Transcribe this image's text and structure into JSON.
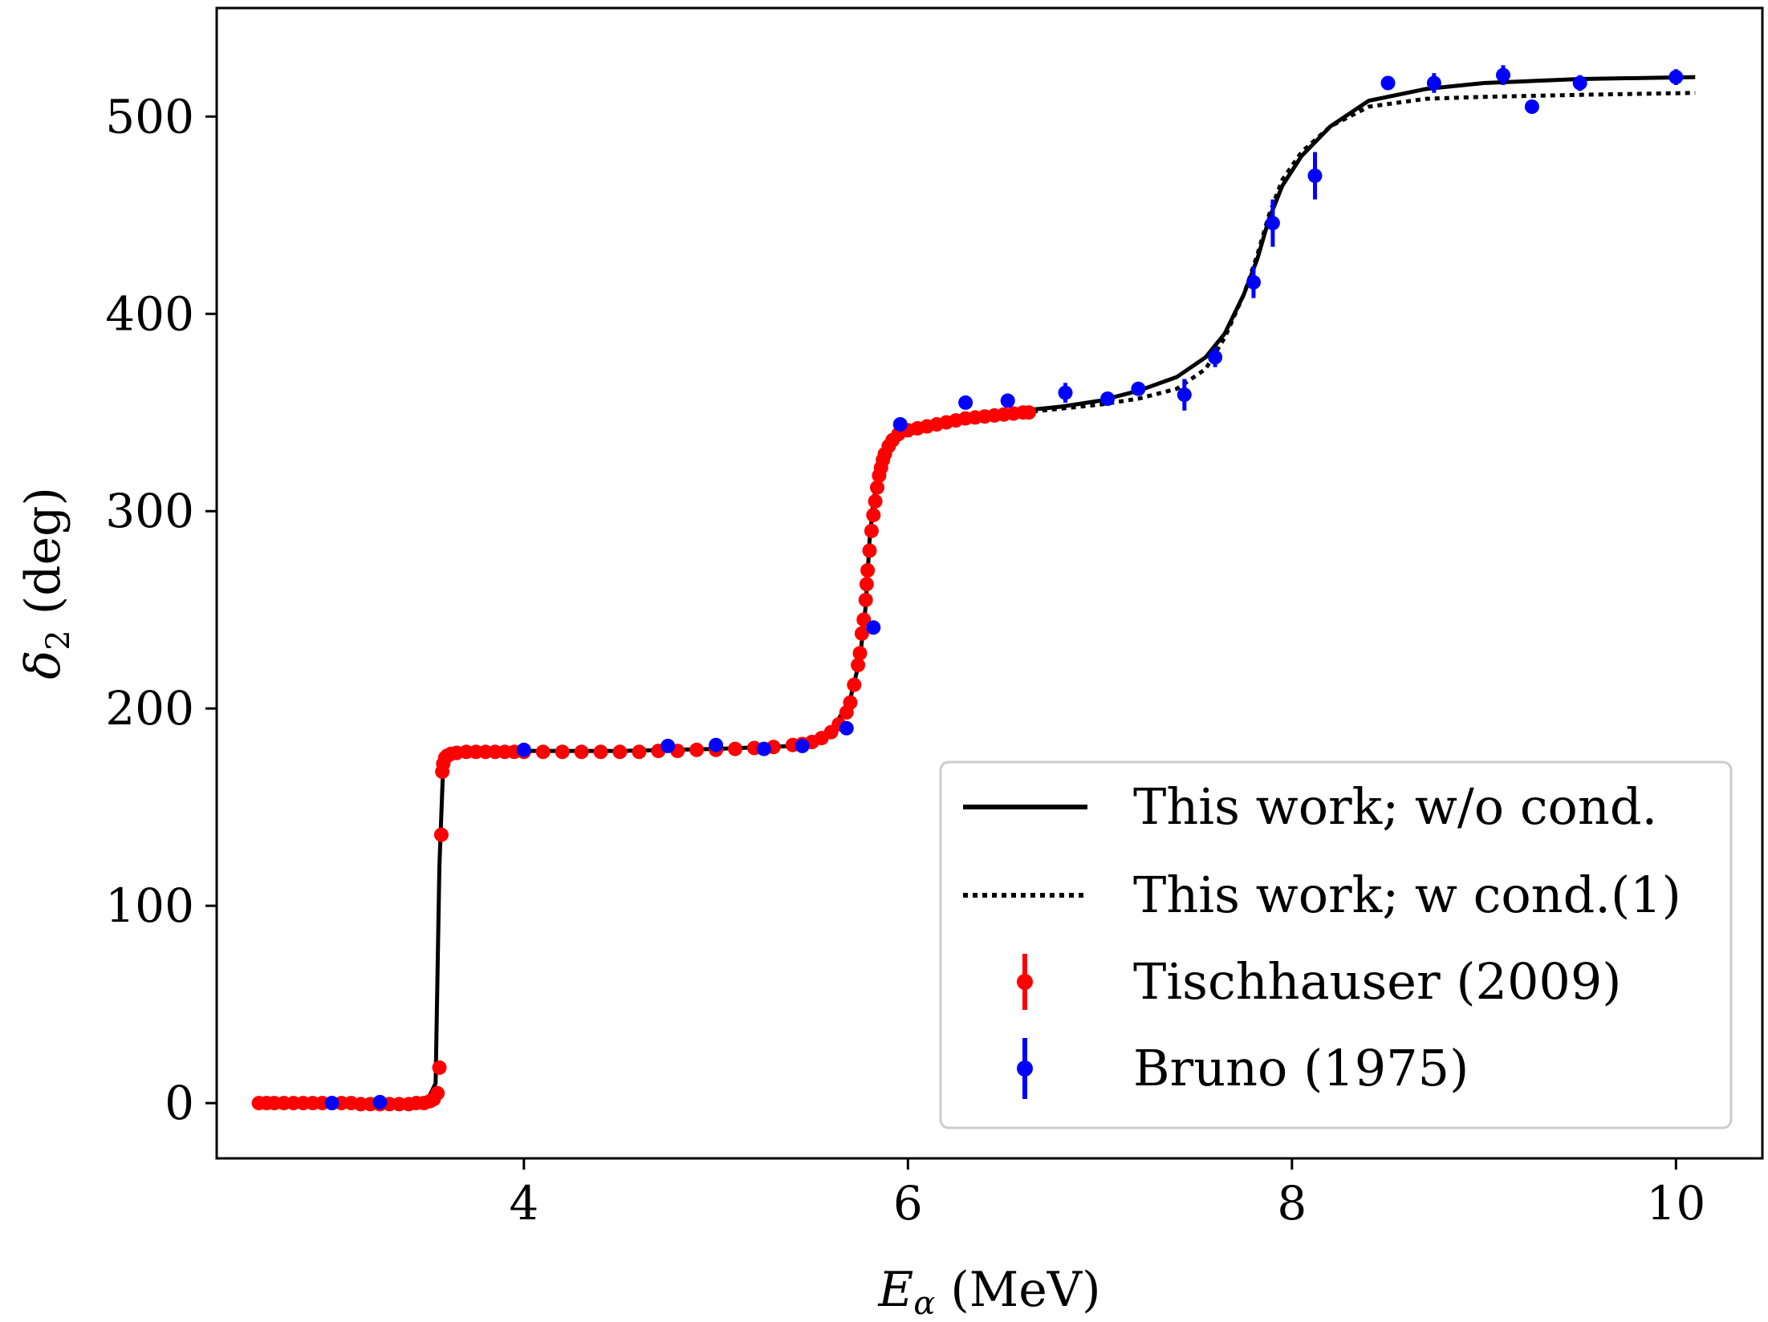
{
  "chart_data": {
    "type": "scatter",
    "xlabel": "E_α (MeV)",
    "ylabel": "δ_2 (deg)",
    "xlabel_parts": {
      "symbol": "E",
      "subscript": "α",
      "unit": " (MeV)"
    },
    "ylabel_parts": {
      "symbol": "δ",
      "subscript": "2",
      "unit": " (deg)"
    },
    "xlim": [
      2.4,
      10.45
    ],
    "ylim": [
      -28,
      555
    ],
    "xticks": [
      4,
      6,
      8,
      10
    ],
    "yticks": [
      0,
      100,
      200,
      300,
      400,
      500
    ],
    "grid": false,
    "legend_position": "lower-right",
    "series": [
      {
        "name": "This work; w/o cond.",
        "kind": "line",
        "style": "solid",
        "color": "#000000",
        "x": [
          2.6,
          3.0,
          3.4,
          3.5,
          3.54,
          3.56,
          3.58,
          3.62,
          3.8,
          4.5,
          5.0,
          5.4,
          5.6,
          5.7,
          5.75,
          5.78,
          5.8,
          5.82,
          5.85,
          5.9,
          6.0,
          6.2,
          6.5,
          6.8,
          7.0,
          7.2,
          7.4,
          7.55,
          7.65,
          7.75,
          7.82,
          7.88,
          7.95,
          8.05,
          8.2,
          8.4,
          8.7,
          9.0,
          9.5,
          10.1
        ],
        "y": [
          0,
          0,
          0.5,
          2,
          10,
          120,
          172,
          178,
          178.5,
          178.5,
          179.5,
          181,
          188,
          205,
          225,
          252,
          285,
          305,
          320,
          333,
          341,
          346,
          350,
          353,
          356,
          361,
          368,
          378,
          390,
          410,
          428,
          448,
          465,
          480,
          495,
          508,
          514,
          517,
          519,
          520
        ]
      },
      {
        "name": "This work; w cond.(1)",
        "kind": "line",
        "style": "dotted",
        "color": "#000000",
        "x": [
          6.6,
          6.8,
          7.0,
          7.2,
          7.4,
          7.55,
          7.65,
          7.75,
          7.82,
          7.88,
          7.95,
          8.05,
          8.2,
          8.4,
          8.7,
          9.0,
          9.5,
          10.1
        ],
        "y": [
          350,
          352,
          354,
          357,
          362,
          372,
          388,
          410,
          430,
          450,
          468,
          482,
          495,
          505,
          509,
          510,
          511,
          512
        ]
      },
      {
        "name": "Tischhauser (2009)",
        "kind": "errorbar",
        "color": "#ff0000",
        "x": [
          2.62,
          2.66,
          2.7,
          2.75,
          2.8,
          2.85,
          2.9,
          2.95,
          3.0,
          3.05,
          3.1,
          3.15,
          3.2,
          3.25,
          3.3,
          3.35,
          3.4,
          3.44,
          3.48,
          3.51,
          3.53,
          3.55,
          3.56,
          3.57,
          3.575,
          3.58,
          3.59,
          3.6,
          3.62,
          3.65,
          3.7,
          3.75,
          3.8,
          3.85,
          3.9,
          3.95,
          4.0,
          4.1,
          4.2,
          4.3,
          4.4,
          4.5,
          4.6,
          4.7,
          4.8,
          4.9,
          5.0,
          5.1,
          5.2,
          5.3,
          5.4,
          5.45,
          5.5,
          5.55,
          5.6,
          5.64,
          5.68,
          5.7,
          5.72,
          5.74,
          5.75,
          5.76,
          5.77,
          5.78,
          5.785,
          5.79,
          5.8,
          5.81,
          5.82,
          5.83,
          5.84,
          5.85,
          5.86,
          5.87,
          5.88,
          5.9,
          5.92,
          5.95,
          6.0,
          6.05,
          6.1,
          6.15,
          6.2,
          6.25,
          6.3,
          6.35,
          6.4,
          6.45,
          6.5,
          6.55,
          6.6,
          6.63
        ],
        "y": [
          0,
          0,
          0,
          0,
          0,
          0,
          0,
          0,
          0,
          0,
          0,
          -0.5,
          -0.5,
          -0.5,
          -0.5,
          -0.5,
          -0.5,
          0,
          0,
          1,
          2,
          5,
          18,
          136,
          168,
          172,
          175,
          176,
          177,
          177.5,
          178,
          178,
          178,
          178,
          178,
          178,
          178,
          178,
          178,
          178,
          178,
          178,
          178,
          178.5,
          178.5,
          179,
          179,
          179.5,
          180,
          180.5,
          181.5,
          182,
          183,
          185,
          188,
          192,
          198,
          203,
          212,
          222,
          228,
          238,
          245,
          255,
          263,
          270,
          280,
          290,
          298,
          305,
          312,
          318,
          322,
          326,
          329,
          333,
          336,
          339,
          341,
          342,
          343,
          344,
          345,
          346,
          347,
          347.5,
          348,
          348.5,
          349,
          349.5,
          350,
          350
        ]
      },
      {
        "name": "Bruno (1975)",
        "kind": "errorbar",
        "color": "#0000ff",
        "x": [
          3.0,
          3.25,
          4.0,
          4.75,
          5.0,
          5.25,
          5.45,
          5.68,
          5.82,
          5.96,
          6.3,
          6.52,
          6.82,
          7.04,
          7.2,
          7.44,
          7.6,
          7.8,
          7.9,
          8.12,
          8.5,
          8.74,
          9.1,
          9.25,
          9.5,
          10.0
        ],
        "y": [
          0,
          0.5,
          179,
          181,
          181.5,
          179.5,
          181,
          190,
          241,
          344,
          355,
          356,
          360,
          357,
          362,
          359,
          378,
          416,
          446,
          470,
          517,
          517,
          521,
          505,
          517,
          520
        ],
        "err": [
          0,
          0,
          0,
          0,
          0,
          0,
          0,
          0,
          0,
          0,
          0,
          0,
          5,
          0,
          0,
          8,
          5,
          8,
          12,
          12,
          0,
          5,
          5,
          0,
          4,
          4
        ]
      }
    ]
  }
}
